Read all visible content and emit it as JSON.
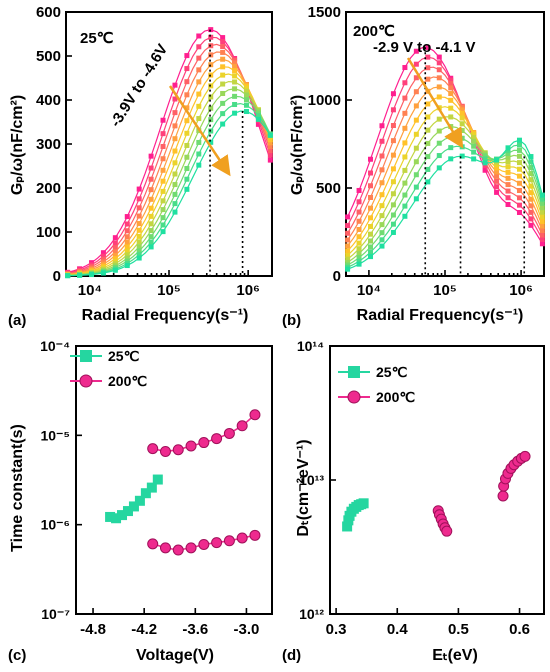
{
  "panels": {
    "a": {
      "label": "(a)",
      "annotation_temp": "25℃",
      "annotation_range": "-3.9V to -4.6V",
      "xlabel": "Radial Frequency(s⁻¹)",
      "ylabel": "Gₚ/ω(nF/cm²)"
    },
    "b": {
      "label": "(b)",
      "annotation_temp": "200℃",
      "annotation_range": "-2.9 V to -4.1 V",
      "xlabel": "Radial Frequency(s⁻¹)",
      "ylabel": "Gₚ/ω(nF/cm²)"
    },
    "c": {
      "label": "(c)",
      "xlabel": "Voltage(V)",
      "ylabel": "Time constant(s)"
    },
    "d": {
      "label": "(d)",
      "xlabel": "Eₜ(eV)",
      "ylabel": "Dₜ(cm⁻²eV⁻¹)"
    }
  },
  "colors": {
    "series_25": "#25d6a0",
    "series_200": "#ee2a8e",
    "arrow": "#f0a020",
    "gradient_start": "#ff1f8f",
    "gradient_mid": "#ffd21f",
    "gradient_end": "#1fe0a0"
  },
  "chart_data": [
    {
      "panel": "a",
      "type": "scatter",
      "xscale": "log",
      "xlim": [
        5000,
        2000000
      ],
      "ylim": [
        0,
        600
      ],
      "xticks": [
        "10⁴",
        "10⁵",
        "10⁶"
      ],
      "yticks": [
        "0",
        "100",
        "200",
        "300",
        "400",
        "500",
        "600"
      ],
      "num_curves": 12,
      "peak_range_x": [
        330000,
        850000
      ],
      "peak_range_y": [
        560,
        375
      ],
      "marker_lines_x": [
        330000,
        850000
      ]
    },
    {
      "panel": "b",
      "type": "scatter",
      "xscale": "log",
      "xlim": [
        5000,
        2000000
      ],
      "ylim": [
        0,
        1500
      ],
      "xticks": [
        "10⁴",
        "10⁵",
        "10⁶"
      ],
      "yticks": [
        "0",
        "500",
        "1000",
        "1500"
      ],
      "num_curves": 12,
      "peak_range_x": [
        55000,
        160000
      ],
      "peak_range_y": [
        1300,
        680
      ],
      "marker_lines_x": [
        55000,
        160000,
        1100000
      ]
    },
    {
      "panel": "c",
      "type": "scatter",
      "yscale": "log",
      "xlim": [
        -5.0,
        -2.7
      ],
      "ylim_exp": [
        -7,
        -4
      ],
      "xticks": [
        "-4.8",
        "-4.2",
        "-3.6",
        "-3.0"
      ],
      "yticks": [
        "10⁻⁴",
        "10⁻⁵",
        "10⁻⁶",
        "10⁻⁷"
      ],
      "legend_position": "top-left",
      "series": [
        {
          "name": "25℃",
          "marker": "square",
          "points": [
            [
              -4.6,
              1.22e-06
            ],
            [
              -4.53,
              1.18e-06
            ],
            [
              -4.46,
              1.28e-06
            ],
            [
              -4.39,
              1.42e-06
            ],
            [
              -4.32,
              1.6e-06
            ],
            [
              -4.25,
              1.85e-06
            ],
            [
              -4.18,
              2.25e-06
            ],
            [
              -4.11,
              2.6e-06
            ],
            [
              -4.04,
              3.2e-06
            ]
          ]
        },
        {
          "name": "200℃",
          "marker": "circle",
          "points_upper": [
            [
              -4.1,
              7.1e-06
            ],
            [
              -3.95,
              6.6e-06
            ],
            [
              -3.8,
              6.9e-06
            ],
            [
              -3.65,
              7.6e-06
            ],
            [
              -3.5,
              8.3e-06
            ],
            [
              -3.35,
              9.2e-06
            ],
            [
              -3.2,
              1.05e-05
            ],
            [
              -3.05,
              1.28e-05
            ],
            [
              -2.9,
              1.7e-05
            ]
          ],
          "points_lower": [
            [
              -4.1,
              6.1e-07
            ],
            [
              -3.95,
              5.5e-07
            ],
            [
              -3.8,
              5.2e-07
            ],
            [
              -3.65,
              5.5e-07
            ],
            [
              -3.5,
              6e-07
            ],
            [
              -3.35,
              6.3e-07
            ],
            [
              -3.2,
              6.6e-07
            ],
            [
              -3.05,
              7.1e-07
            ],
            [
              -2.9,
              7.6e-07
            ]
          ]
        }
      ]
    },
    {
      "panel": "d",
      "type": "scatter",
      "yscale": "log",
      "xlim": [
        0.29,
        0.64
      ],
      "ylim_exp": [
        12,
        14
      ],
      "xticks": [
        "0.3",
        "0.4",
        "0.5",
        "0.6"
      ],
      "yticks": [
        "10¹⁴",
        "10¹³",
        "10¹²"
      ],
      "legend_position": "top-left",
      "series": [
        {
          "name": "25℃",
          "marker": "square",
          "points": [
            [
              0.318,
              4500000000000.0
            ],
            [
              0.32,
              5000000000000.0
            ],
            [
              0.322,
              5400000000000.0
            ],
            [
              0.325,
              5800000000000.0
            ],
            [
              0.329,
              6100000000000.0
            ],
            [
              0.333,
              6300000000000.0
            ],
            [
              0.337,
              6500000000000.0
            ],
            [
              0.341,
              6600000000000.0
            ],
            [
              0.345,
              6700000000000.0
            ]
          ]
        },
        {
          "name": "200℃",
          "marker": "circle",
          "points_low": [
            [
              0.467,
              5900000000000.0
            ],
            [
              0.469,
              5500000000000.0
            ],
            [
              0.472,
              5100000000000.0
            ],
            [
              0.475,
              4700000000000.0
            ],
            [
              0.478,
              4400000000000.0
            ],
            [
              0.481,
              4150000000000.0
            ]
          ],
          "points_high": [
            [
              0.573,
              7600000000000.0
            ],
            [
              0.574,
              9000000000000.0
            ],
            [
              0.577,
              10200000000000.0
            ],
            [
              0.581,
              11200000000000.0
            ],
            [
              0.586,
              12200000000000.0
            ],
            [
              0.591,
              13000000000000.0
            ],
            [
              0.597,
              13800000000000.0
            ],
            [
              0.603,
              14500000000000.0
            ],
            [
              0.609,
              15000000000000.0
            ]
          ]
        }
      ]
    }
  ]
}
